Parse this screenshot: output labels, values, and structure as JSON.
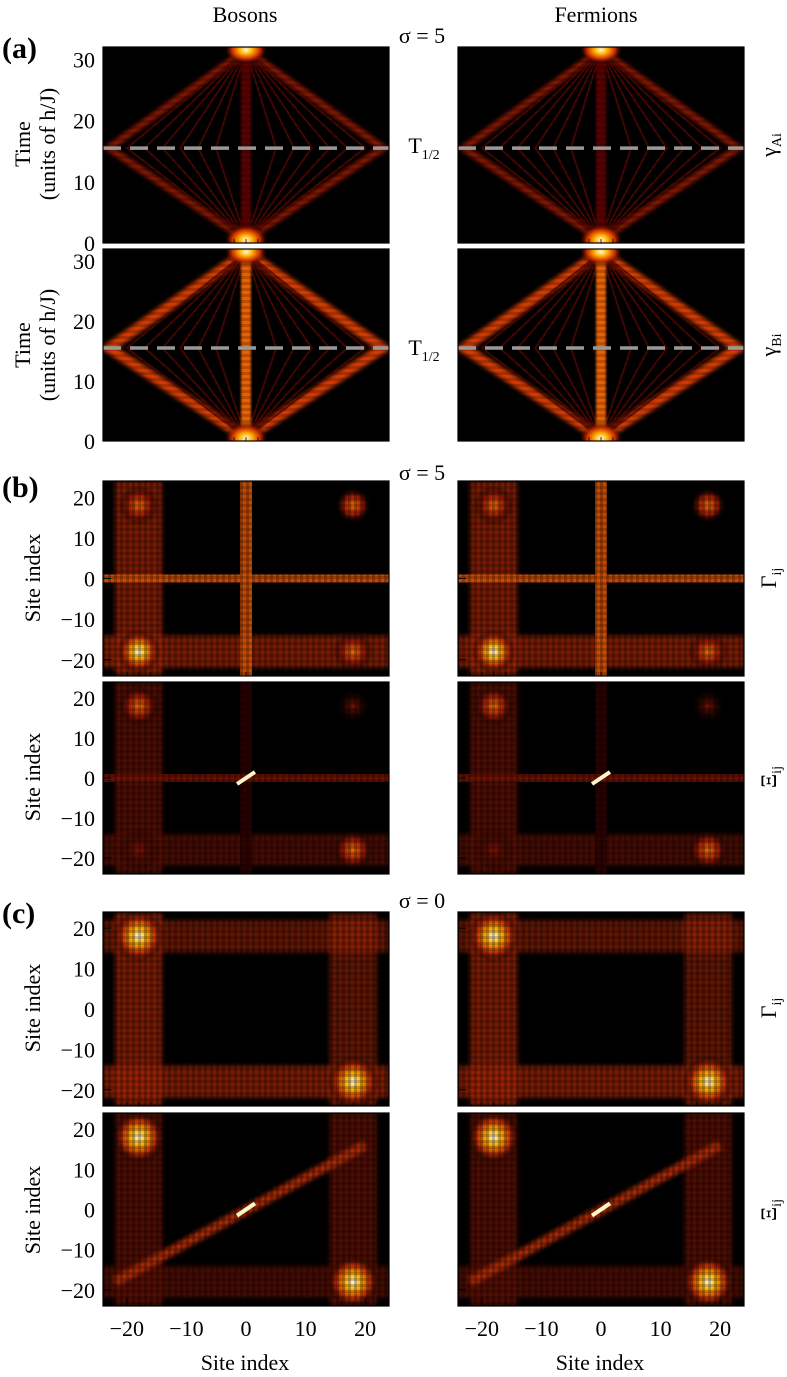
{
  "column_titles": [
    "Bosons",
    "Fermions"
  ],
  "panel_labels": [
    "(a)",
    "(b)",
    "(c)"
  ],
  "sigma_labels": [
    "σ = 5",
    "σ = 5",
    "σ = 0"
  ],
  "ylabels": {
    "time_line1": "Time",
    "time_line2": "(units of h/J)",
    "site": "Site index"
  },
  "xlabel": "Site index",
  "t_half": {
    "base": "T",
    "sub": "1/2"
  },
  "quantities": [
    {
      "base": "γ",
      "sub": "Ai"
    },
    {
      "base": "γ",
      "sub": "Bi"
    },
    {
      "base": "Γ",
      "sub": "ij"
    },
    {
      "base": "Ξ",
      "sub": "ij"
    },
    {
      "base": "Γ",
      "sub": "ij"
    },
    {
      "base": "Ξ",
      "sub": "ij"
    }
  ],
  "colors": {
    "colormap": [
      "#000000",
      "#5a0000",
      "#b01e00",
      "#e85a00",
      "#ffb000",
      "#ffffff"
    ],
    "dashed_line": "#999999"
  },
  "chart_data": [
    {
      "type": "heatmap",
      "panel": "(a)",
      "quantity": "γ_Ai",
      "rows": [
        "Bosons",
        "Fermions"
      ],
      "x_range": [
        -24,
        24
      ],
      "ylabel": "Time (units of h/J)",
      "yticks": [
        0,
        10,
        20,
        30
      ],
      "ylim": [
        0,
        32
      ],
      "annotation": "T1/2",
      "dashed_line_y": 15.5
    },
    {
      "type": "heatmap",
      "panel": "(a)",
      "quantity": "γ_Bi",
      "x_range": [
        -24,
        24
      ],
      "ylabel": "Time (units of h/J)",
      "yticks": [
        0,
        10,
        20,
        30
      ],
      "ylim": [
        0,
        32
      ],
      "annotation": "T1/2",
      "dashed_line_y": 15.5
    },
    {
      "type": "heatmap",
      "panel": "(b)",
      "quantity": "Γ_ij",
      "sigma": 5,
      "xlim": [
        -24,
        24
      ],
      "ylim": [
        -24,
        24
      ],
      "yticks": [
        -20,
        -10,
        0,
        10,
        20
      ],
      "ylabel": "Site index"
    },
    {
      "type": "heatmap",
      "panel": "(b)",
      "quantity": "Ξ_ij",
      "sigma": 5,
      "xlim": [
        -24,
        24
      ],
      "ylim": [
        -24,
        24
      ],
      "yticks": [
        -20,
        -10,
        0,
        10,
        20
      ],
      "ylabel": "Site index"
    },
    {
      "type": "heatmap",
      "panel": "(c)",
      "quantity": "Γ_ij",
      "sigma": 0,
      "xlim": [
        -24,
        24
      ],
      "ylim": [
        -24,
        24
      ],
      "yticks": [
        -20,
        -10,
        0,
        10,
        20
      ],
      "ylabel": "Site index"
    },
    {
      "type": "heatmap",
      "panel": "(c)",
      "quantity": "Ξ_ij",
      "sigma": 0,
      "xlim": [
        -24,
        24
      ],
      "ylim": [
        -24,
        24
      ],
      "yticks": [
        -20,
        -10,
        0,
        10,
        20
      ],
      "xticks": [
        -20,
        -10,
        0,
        10,
        20
      ],
      "xlabel": "Site index",
      "ylabel": "Site index"
    }
  ]
}
